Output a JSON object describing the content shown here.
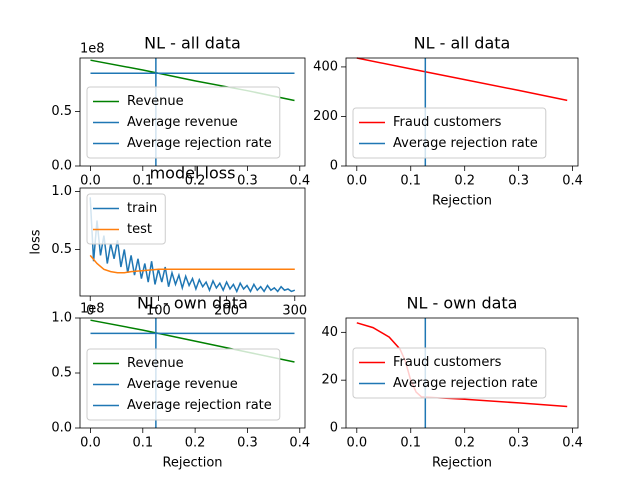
{
  "chart_data": [
    {
      "type": "line",
      "title": "NL - all data",
      "offset_label": "1e8",
      "series": [
        {
          "name": "Revenue",
          "color": "#008000",
          "x": [
            0,
            0.1,
            0.2,
            0.3,
            0.39
          ],
          "values": [
            0.97,
            0.88,
            0.78,
            0.69,
            0.6
          ]
        },
        {
          "name": "Average revenue",
          "color": "#1f77b4",
          "x": [
            0,
            0.39
          ],
          "values": [
            0.85,
            0.85
          ]
        }
      ],
      "vlines": [
        {
          "name": "Average rejection rate",
          "color": "#1f77b4",
          "x": 0.125
        }
      ],
      "xlim": [
        -0.02,
        0.41
      ],
      "ylim": [
        0,
        0.99
      ],
      "xticks": [
        {
          "value": 0,
          "label": "0.0"
        },
        0.1,
        0.2,
        0.3,
        0.4
      ],
      "yticks": [
        {
          "value": 0,
          "label": "0.0"
        },
        0.5
      ],
      "legend": "lower left"
    },
    {
      "type": "line",
      "title": "NL - all data",
      "xlabel": "Rejection",
      "series": [
        {
          "name": "Fraud customers",
          "color": "#ff0000",
          "x": [
            0,
            0.1,
            0.2,
            0.3,
            0.39
          ],
          "values": [
            436,
            392,
            349,
            305,
            265
          ]
        }
      ],
      "vlines": [
        {
          "name": "Average rejection rate",
          "color": "#1f77b4",
          "x": 0.127
        }
      ],
      "xlim": [
        -0.02,
        0.41
      ],
      "ylim": [
        0,
        436
      ],
      "xticks": [
        {
          "value": 0,
          "label": "0.0"
        },
        0.1,
        0.2,
        0.3,
        0.4
      ],
      "yticks": [
        0,
        200,
        400
      ],
      "legend": "lower left"
    },
    {
      "type": "line",
      "title": "model loss",
      "ylabel": "loss",
      "series": [
        {
          "name": "train",
          "color": "#1f77b4",
          "x": [
            0,
            5,
            10,
            15,
            20,
            25,
            30,
            35,
            40,
            45,
            50,
            55,
            60,
            65,
            70,
            75,
            80,
            85,
            90,
            95,
            100,
            105,
            110,
            115,
            120,
            125,
            130,
            135,
            140,
            145,
            150,
            155,
            160,
            165,
            170,
            175,
            180,
            185,
            190,
            195,
            200,
            205,
            210,
            215,
            220,
            225,
            230,
            235,
            240,
            245,
            250,
            255,
            260,
            265,
            270,
            275,
            280,
            285,
            290,
            295,
            300
          ],
          "values": [
            0.95,
            0.4,
            0.75,
            0.45,
            0.62,
            0.38,
            0.55,
            0.42,
            0.58,
            0.35,
            0.5,
            0.3,
            0.45,
            0.28,
            0.42,
            0.25,
            0.38,
            0.22,
            0.4,
            0.2,
            0.33,
            0.22,
            0.35,
            0.18,
            0.3,
            0.2,
            0.28,
            0.17,
            0.27,
            0.19,
            0.25,
            0.16,
            0.24,
            0.18,
            0.22,
            0.15,
            0.23,
            0.17,
            0.21,
            0.15,
            0.22,
            0.16,
            0.2,
            0.14,
            0.21,
            0.16,
            0.19,
            0.14,
            0.2,
            0.15,
            0.18,
            0.14,
            0.19,
            0.15,
            0.17,
            0.14,
            0.18,
            0.15,
            0.16,
            0.14,
            0.15
          ]
        },
        {
          "name": "test",
          "color": "#ff7f0e",
          "x": [
            0,
            10,
            20,
            30,
            40,
            50,
            60,
            80,
            100,
            150,
            200,
            250,
            300
          ],
          "values": [
            0.45,
            0.38,
            0.33,
            0.31,
            0.3,
            0.3,
            0.31,
            0.32,
            0.33,
            0.33,
            0.33,
            0.33,
            0.33
          ]
        }
      ],
      "xlim": [
        -15,
        315
      ],
      "ylim": [
        0.1,
        1.03
      ],
      "xticks": [
        0,
        100,
        200,
        300
      ],
      "yticks": [
        0.5,
        {
          "value": 1,
          "label": "1.0"
        }
      ],
      "legend": "upper left"
    },
    {
      "type": "line",
      "title": "NL - own data",
      "offset_label": "1e8",
      "xlabel": "Rejection",
      "series": [
        {
          "name": "Revenue",
          "color": "#008000",
          "x": [
            0,
            0.1,
            0.2,
            0.3,
            0.39
          ],
          "values": [
            0.98,
            0.89,
            0.79,
            0.69,
            0.6
          ]
        },
        {
          "name": "Average revenue",
          "color": "#1f77b4",
          "x": [
            0,
            0.39
          ],
          "values": [
            0.86,
            0.86
          ]
        }
      ],
      "vlines": [
        {
          "name": "Average rejection rate",
          "color": "#1f77b4",
          "x": 0.125
        }
      ],
      "xlim": [
        -0.02,
        0.41
      ],
      "ylim": [
        0,
        1
      ],
      "xticks": [
        {
          "value": 0,
          "label": "0.0"
        },
        0.1,
        0.2,
        0.3,
        0.4
      ],
      "yticks": [
        {
          "value": 0,
          "label": "0.0"
        },
        0.5,
        {
          "value": 1,
          "label": "1.0"
        }
      ],
      "legend": "lower left"
    },
    {
      "type": "line",
      "title": "NL - own data",
      "xlabel": "Rejection",
      "series": [
        {
          "name": "Fraud customers",
          "color": "#ff0000",
          "x": [
            0,
            0.03,
            0.06,
            0.08,
            0.09,
            0.1,
            0.11,
            0.12,
            0.2,
            0.3,
            0.39
          ],
          "values": [
            44,
            42,
            38,
            33,
            28,
            20,
            15,
            13,
            12,
            10.5,
            9
          ]
        }
      ],
      "vlines": [
        {
          "name": "Average rejection rate",
          "color": "#1f77b4",
          "x": 0.127
        }
      ],
      "xlim": [
        -0.02,
        0.41
      ],
      "ylim": [
        0,
        46
      ],
      "xticks": [
        {
          "value": 0,
          "label": "0.0"
        },
        0.1,
        0.2,
        0.3,
        0.4
      ],
      "yticks": [
        0,
        20,
        40
      ],
      "legend": "center left"
    }
  ]
}
